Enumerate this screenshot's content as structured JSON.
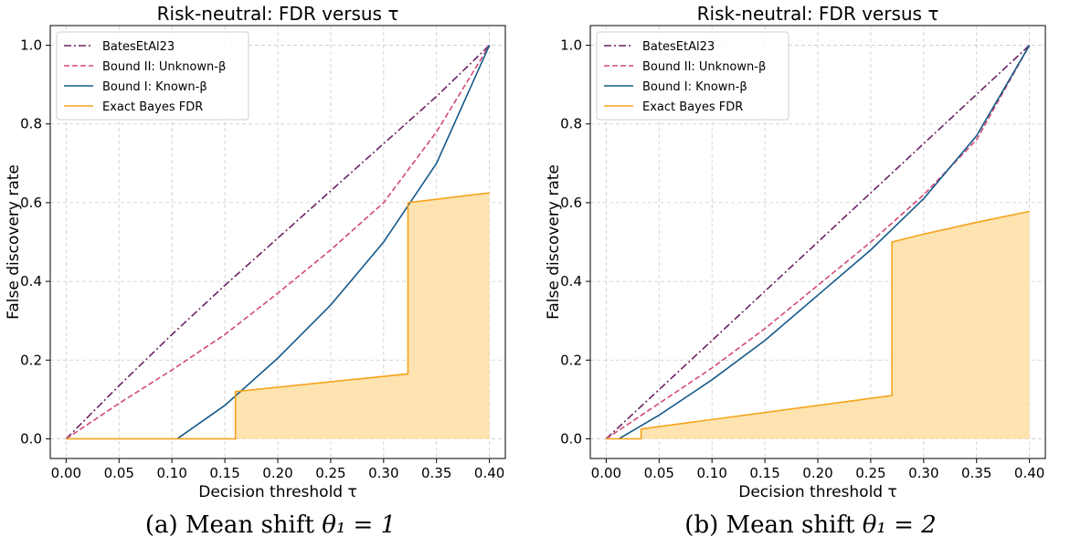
{
  "chart_data": [
    {
      "type": "line",
      "title": "Risk-neutral:  FDR versus τ",
      "xlabel": "Decision threshold τ",
      "ylabel": "False discovery rate",
      "xlim": [
        -0.015,
        0.415
      ],
      "ylim": [
        -0.05,
        1.05
      ],
      "xticks": [
        0.0,
        0.05,
        0.1,
        0.15,
        0.2,
        0.25,
        0.3,
        0.35,
        0.4
      ],
      "xtick_labels": [
        "0.00",
        "0.05",
        "0.10",
        "0.15",
        "0.20",
        "0.25",
        "0.30",
        "0.35",
        "0.40"
      ],
      "yticks": [
        0.0,
        0.2,
        0.4,
        0.6,
        0.8,
        1.0
      ],
      "ytick_labels": [
        "0.0",
        "0.2",
        "0.4",
        "0.6",
        "0.8",
        "1.0"
      ],
      "grid": true,
      "legend_position": "upper-left",
      "series": [
        {
          "name": "BatesEtAl23",
          "color": "#6b2163",
          "style": "dashdot",
          "x": [
            0,
            0.05,
            0.1,
            0.15,
            0.2,
            0.25,
            0.3,
            0.35,
            0.4
          ],
          "y": [
            0,
            0.135,
            0.265,
            0.39,
            0.51,
            0.63,
            0.75,
            0.87,
            1.0
          ]
        },
        {
          "name": "Bound II: Unknown-β",
          "color": "#d14a75",
          "style": "dashed",
          "x": [
            0,
            0.05,
            0.1,
            0.15,
            0.2,
            0.25,
            0.3,
            0.35,
            0.4
          ],
          "y": [
            0,
            0.09,
            0.175,
            0.265,
            0.37,
            0.48,
            0.6,
            0.78,
            1.0
          ]
        },
        {
          "name": "Bound I: Known-β",
          "color": "#175a8a",
          "style": "solid",
          "x": [
            0.105,
            0.15,
            0.2,
            0.25,
            0.3,
            0.35,
            0.4
          ],
          "y": [
            0,
            0.085,
            0.205,
            0.34,
            0.5,
            0.7,
            1.0
          ]
        },
        {
          "name": "Exact Bayes FDR",
          "color": "#f5a31a",
          "style": "solid",
          "fill": "#fde3b0",
          "x": [
            0,
            0.16,
            0.16,
            0.323,
            0.323,
            0.4
          ],
          "y": [
            0,
            0,
            0.12,
            0.165,
            0.6,
            0.625
          ]
        }
      ]
    },
    {
      "type": "line",
      "title": "Risk-neutral:  FDR versus τ",
      "xlabel": "Decision threshold τ",
      "ylabel": "False discovery rate",
      "xlim": [
        -0.015,
        0.415
      ],
      "ylim": [
        -0.05,
        1.05
      ],
      "xticks": [
        0.0,
        0.05,
        0.1,
        0.15,
        0.2,
        0.25,
        0.3,
        0.35,
        0.4
      ],
      "xtick_labels": [
        "0.00",
        "0.05",
        "0.10",
        "0.15",
        "0.20",
        "0.25",
        "0.30",
        "0.35",
        "0.40"
      ],
      "yticks": [
        0.0,
        0.2,
        0.4,
        0.6,
        0.8,
        1.0
      ],
      "ytick_labels": [
        "0.0",
        "0.2",
        "0.4",
        "0.6",
        "0.8",
        "1.0"
      ],
      "grid": true,
      "legend_position": "upper-left",
      "series": [
        {
          "name": "BatesEtAl23",
          "color": "#6b2163",
          "style": "dashdot",
          "x": [
            0,
            0.05,
            0.1,
            0.15,
            0.2,
            0.25,
            0.3,
            0.35,
            0.4
          ],
          "y": [
            0,
            0.125,
            0.25,
            0.375,
            0.5,
            0.625,
            0.75,
            0.875,
            1.0
          ]
        },
        {
          "name": "Bound II: Unknown-β",
          "color": "#d14a75",
          "style": "dashed",
          "x": [
            0,
            0.05,
            0.1,
            0.15,
            0.2,
            0.25,
            0.3,
            0.35,
            0.4
          ],
          "y": [
            0,
            0.09,
            0.18,
            0.28,
            0.39,
            0.5,
            0.62,
            0.76,
            1.0
          ]
        },
        {
          "name": "Bound I: Known-β",
          "color": "#175a8a",
          "style": "solid",
          "x": [
            0.012,
            0.05,
            0.1,
            0.15,
            0.2,
            0.25,
            0.3,
            0.35,
            0.4
          ],
          "y": [
            0,
            0.06,
            0.15,
            0.25,
            0.365,
            0.48,
            0.61,
            0.77,
            1.0
          ]
        },
        {
          "name": "Exact Bayes FDR",
          "color": "#f5a31a",
          "style": "solid",
          "fill": "#fde3b0",
          "x": [
            0,
            0.033,
            0.033,
            0.27,
            0.27,
            0.3,
            0.35,
            0.4
          ],
          "y": [
            0,
            0,
            0.025,
            0.11,
            0.5,
            0.52,
            0.55,
            0.578
          ]
        }
      ]
    }
  ],
  "captions": [
    {
      "prefix": "(a) Mean shift ",
      "math": "θ₁ = 1"
    },
    {
      "prefix": "(b) Mean shift ",
      "math": "θ₁ = 2"
    }
  ]
}
